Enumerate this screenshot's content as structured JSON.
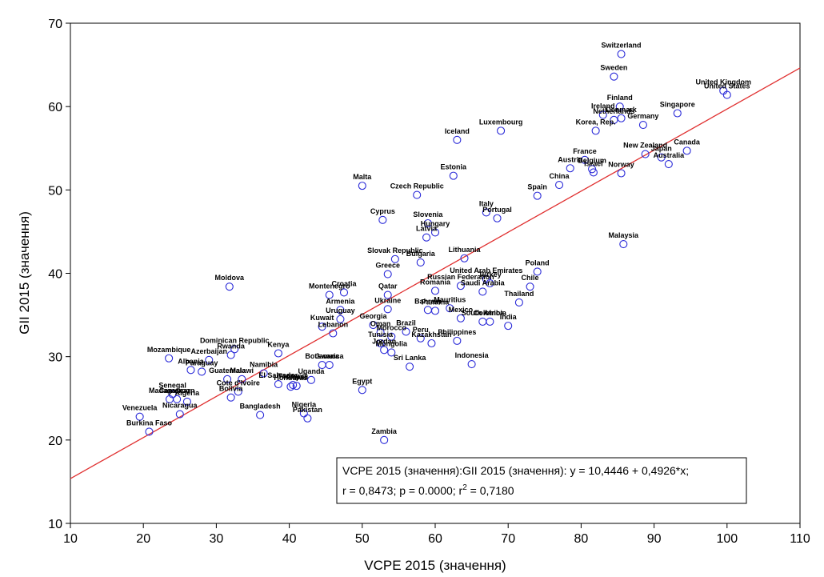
{
  "chart_data": {
    "type": "scatter",
    "title": "",
    "xlabel": "VCPE 2015 (значення)",
    "ylabel": "GII 2015 (значення)",
    "xlim": [
      10,
      110
    ],
    "ylim": [
      10,
      70
    ],
    "xticks": [
      10,
      20,
      30,
      40,
      50,
      60,
      70,
      80,
      90,
      100,
      110
    ],
    "yticks": [
      10,
      20,
      30,
      40,
      50,
      60,
      70
    ],
    "grid": false,
    "regression": {
      "intercept": 10.4446,
      "slope": 0.4926
    },
    "stats_box": {
      "line1": "VCPE 2015 (значення):GII 2015 (значення):   y = 10,4446 + 0,4926*x;",
      "line2_prefix": "r = 0,8473; p = 0.0000; r",
      "line2_sup": "2",
      "line2_suffix": " = 0,7180"
    },
    "colors": {
      "marker": "#2a2ad8",
      "regression": "#e03030",
      "axis": "#000000"
    },
    "points": [
      {
        "label": "Switzerland",
        "x": 85.5,
        "y": 66.3
      },
      {
        "label": "Sweden",
        "x": 84.5,
        "y": 63.6
      },
      {
        "label": "United Kingdom",
        "x": 99.5,
        "y": 61.9
      },
      {
        "label": "United States",
        "x": 100.0,
        "y": 61.4
      },
      {
        "label": "Finland",
        "x": 85.3,
        "y": 60.0
      },
      {
        "label": "Ireland",
        "x": 83.0,
        "y": 59.0
      },
      {
        "label": "Netherlands",
        "x": 84.5,
        "y": 58.4
      },
      {
        "label": "Denmark",
        "x": 85.5,
        "y": 58.6
      },
      {
        "label": "Singapore",
        "x": 93.2,
        "y": 59.2
      },
      {
        "label": "Germany",
        "x": 88.5,
        "y": 57.8
      },
      {
        "label": "Korea, Rep.",
        "x": 82.0,
        "y": 57.1
      },
      {
        "label": "Luxembourg",
        "x": 69.0,
        "y": 57.1
      },
      {
        "label": "Iceland",
        "x": 63.0,
        "y": 56.0
      },
      {
        "label": "France",
        "x": 80.5,
        "y": 53.6
      },
      {
        "label": "Japan",
        "x": 91.0,
        "y": 53.9
      },
      {
        "label": "Canada",
        "x": 94.5,
        "y": 54.7
      },
      {
        "label": "New Zealand",
        "x": 88.8,
        "y": 54.3
      },
      {
        "label": "Australia",
        "x": 92.0,
        "y": 53.1
      },
      {
        "label": "Austria",
        "x": 78.5,
        "y": 52.6
      },
      {
        "label": "Belgium",
        "x": 81.5,
        "y": 52.5
      },
      {
        "label": "Israel",
        "x": 81.7,
        "y": 52.1
      },
      {
        "label": "Norway",
        "x": 85.5,
        "y": 52.0
      },
      {
        "label": "Estonia",
        "x": 62.5,
        "y": 51.7
      },
      {
        "label": "China",
        "x": 77.0,
        "y": 50.6
      },
      {
        "label": "Malta",
        "x": 50.0,
        "y": 50.5
      },
      {
        "label": "Czech Republic",
        "x": 57.5,
        "y": 49.4
      },
      {
        "label": "Spain",
        "x": 74.0,
        "y": 49.3
      },
      {
        "label": "Italy",
        "x": 67.0,
        "y": 47.3
      },
      {
        "label": "Portugal",
        "x": 68.5,
        "y": 46.6
      },
      {
        "label": "Cyprus",
        "x": 52.8,
        "y": 46.4
      },
      {
        "label": "Slovenia",
        "x": 59.0,
        "y": 46.0
      },
      {
        "label": "Hungary",
        "x": 60.0,
        "y": 44.9
      },
      {
        "label": "Latvia",
        "x": 58.8,
        "y": 44.3
      },
      {
        "label": "Malaysia",
        "x": 85.8,
        "y": 43.5
      },
      {
        "label": "Slovak Republic",
        "x": 54.5,
        "y": 41.7
      },
      {
        "label": "Lithuania",
        "x": 64.0,
        "y": 41.8
      },
      {
        "label": "Bulgaria",
        "x": 58.0,
        "y": 41.3
      },
      {
        "label": "Poland",
        "x": 74.0,
        "y": 40.2
      },
      {
        "label": "Greece",
        "x": 53.5,
        "y": 39.9
      },
      {
        "label": "United Arab Emirates",
        "x": 67.0,
        "y": 39.3
      },
      {
        "label": "Turkey",
        "x": 67.5,
        "y": 38.8
      },
      {
        "label": "Moldova",
        "x": 31.8,
        "y": 38.4
      },
      {
        "label": "Russian Federation",
        "x": 63.5,
        "y": 38.5
      },
      {
        "label": "Chile",
        "x": 73.0,
        "y": 38.4
      },
      {
        "label": "Romania",
        "x": 60.0,
        "y": 37.9
      },
      {
        "label": "Saudi Arabia",
        "x": 66.5,
        "y": 37.8
      },
      {
        "label": "Croatia",
        "x": 47.5,
        "y": 37.7
      },
      {
        "label": "Qatar",
        "x": 53.5,
        "y": 37.4
      },
      {
        "label": "Montenegro",
        "x": 45.5,
        "y": 37.4
      },
      {
        "label": "Thailand",
        "x": 71.5,
        "y": 36.5
      },
      {
        "label": "Ukraine",
        "x": 53.5,
        "y": 35.7
      },
      {
        "label": "Armenia",
        "x": 47.0,
        "y": 35.6
      },
      {
        "label": "Bahrain",
        "x": 59.0,
        "y": 35.6
      },
      {
        "label": "Panama",
        "x": 60.0,
        "y": 35.5
      },
      {
        "label": "Mauritius",
        "x": 62.0,
        "y": 35.8
      },
      {
        "label": "Kuwait",
        "x": 44.5,
        "y": 33.6
      },
      {
        "label": "Uruguay",
        "x": 47.0,
        "y": 34.5
      },
      {
        "label": "Georgia",
        "x": 51.5,
        "y": 33.8
      },
      {
        "label": "South Africa",
        "x": 66.5,
        "y": 34.2
      },
      {
        "label": "Mexico",
        "x": 63.5,
        "y": 34.6
      },
      {
        "label": "Colombia",
        "x": 67.5,
        "y": 34.2
      },
      {
        "label": "India",
        "x": 70.0,
        "y": 33.7
      },
      {
        "label": "Lebanon",
        "x": 46.0,
        "y": 32.8
      },
      {
        "label": "Brazil",
        "x": 56.0,
        "y": 33.0
      },
      {
        "label": "Oman",
        "x": 52.5,
        "y": 32.9
      },
      {
        "label": "Morocco",
        "x": 54.0,
        "y": 32.4
      },
      {
        "label": "Peru",
        "x": 58.0,
        "y": 32.2
      },
      {
        "label": "Philippines",
        "x": 63.0,
        "y": 31.9
      },
      {
        "label": "Kazakhstan",
        "x": 59.5,
        "y": 31.6
      },
      {
        "label": "Tunisia",
        "x": 52.5,
        "y": 31.6
      },
      {
        "label": "Jordan",
        "x": 53.0,
        "y": 30.8
      },
      {
        "label": "Mongolia",
        "x": 54.0,
        "y": 30.5
      },
      {
        "label": "Sri Lanka",
        "x": 56.5,
        "y": 28.8
      },
      {
        "label": "Indonesia",
        "x": 65.0,
        "y": 29.1
      },
      {
        "label": "Kenya",
        "x": 38.5,
        "y": 30.4
      },
      {
        "label": "Dominican Republic",
        "x": 32.5,
        "y": 30.9
      },
      {
        "label": "Rwanda",
        "x": 32.0,
        "y": 30.2
      },
      {
        "label": "Mozambique",
        "x": 23.5,
        "y": 29.8
      },
      {
        "label": "Azerbaijan",
        "x": 29.0,
        "y": 29.6
      },
      {
        "label": "Albania",
        "x": 26.5,
        "y": 28.4
      },
      {
        "label": "Paraguay",
        "x": 28.0,
        "y": 28.2
      },
      {
        "label": "Botswana",
        "x": 44.5,
        "y": 29.0
      },
      {
        "label": "Jamaica",
        "x": 45.5,
        "y": 29.0
      },
      {
        "label": "Namibia",
        "x": 36.5,
        "y": 28.0
      },
      {
        "label": "Guatemala",
        "x": 31.5,
        "y": 27.3
      },
      {
        "label": "Malawi",
        "x": 33.5,
        "y": 27.3
      },
      {
        "label": "Uganda",
        "x": 43.0,
        "y": 27.2
      },
      {
        "label": "El Salvador",
        "x": 38.5,
        "y": 26.7
      },
      {
        "label": "Tanzania",
        "x": 40.5,
        "y": 26.6
      },
      {
        "label": "Nepal",
        "x": 41.0,
        "y": 26.5
      },
      {
        "label": "Honduras",
        "x": 40.2,
        "y": 26.4
      },
      {
        "label": "Cote d'Ivoire",
        "x": 33.0,
        "y": 25.8
      },
      {
        "label": "Egypt",
        "x": 50.0,
        "y": 26.0
      },
      {
        "label": "Bolivia",
        "x": 32.0,
        "y": 25.1
      },
      {
        "label": "Senegal",
        "x": 24.0,
        "y": 25.5
      },
      {
        "label": "Madagascar",
        "x": 23.6,
        "y": 24.9
      },
      {
        "label": "Cameroon",
        "x": 24.6,
        "y": 24.9
      },
      {
        "label": "Algeria",
        "x": 26.0,
        "y": 24.6
      },
      {
        "label": "Nicaragua",
        "x": 25.0,
        "y": 23.1
      },
      {
        "label": "Bangladesh",
        "x": 36.0,
        "y": 23.0
      },
      {
        "label": "Nigeria",
        "x": 42.0,
        "y": 23.2
      },
      {
        "label": "Pakistan",
        "x": 42.5,
        "y": 22.6
      },
      {
        "label": "Venezuela",
        "x": 19.5,
        "y": 22.8
      },
      {
        "label": "Burkina Faso",
        "x": 20.8,
        "y": 21.0
      },
      {
        "label": "Zambia",
        "x": 53.0,
        "y": 20.0
      }
    ]
  }
}
